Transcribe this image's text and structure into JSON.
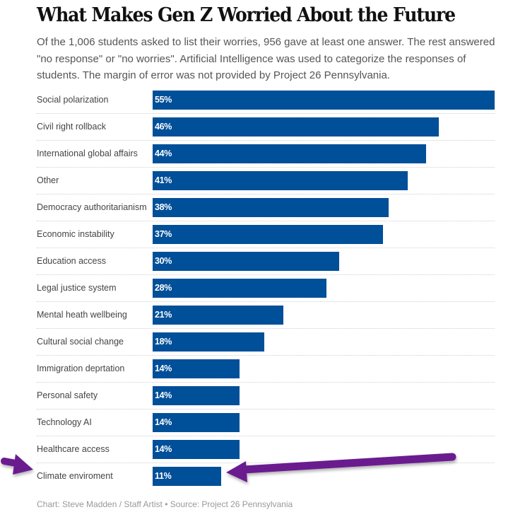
{
  "chart_data": {
    "type": "bar",
    "orientation": "horizontal",
    "title": "What Makes Gen Z Worried About the Future",
    "subtitle": "Of the 1,006 students asked to list their worries, 956 gave at least one answer. The rest answered \"no response\" or \"no worries\". Artificial Intelligence was used to categorize the responses of students. The margin of error was not provided by Project 26 Pennsylvania.",
    "categories": [
      "Social polarization",
      "Civil right rollback",
      "International global affairs",
      "Other",
      "Democracy authoritarianism",
      "Economic instability",
      "Education access",
      "Legal justice system",
      "Mental heath wellbeing",
      "Cultural social change",
      "Immigration deprtation",
      "Personal safety",
      "Technology AI",
      "Healthcare access",
      "Climate enviroment"
    ],
    "values": [
      55,
      46,
      44,
      41,
      38,
      37,
      30,
      28,
      21,
      18,
      14,
      14,
      14,
      14,
      11
    ],
    "value_labels": [
      "55%",
      "46%",
      "44%",
      "41%",
      "38%",
      "37%",
      "30%",
      "28%",
      "21%",
      "18%",
      "14%",
      "14%",
      "14%",
      "14%",
      "11%"
    ],
    "unit": "%",
    "xlim": [
      0,
      55
    ],
    "xlabel": "",
    "ylabel": "",
    "grid": false,
    "legend": "none",
    "bar_color": "#004f99",
    "annotations": [
      {
        "type": "arrow",
        "color": "#6a1f8f",
        "points_to": "Climate enviroment",
        "side": "left"
      },
      {
        "type": "arrow",
        "color": "#6a1f8f",
        "points_to": "Climate enviroment",
        "side": "right"
      }
    ],
    "footer": "Chart: Steve Madden / Staff Artist • Source: Project 26 Pennsylvania"
  }
}
